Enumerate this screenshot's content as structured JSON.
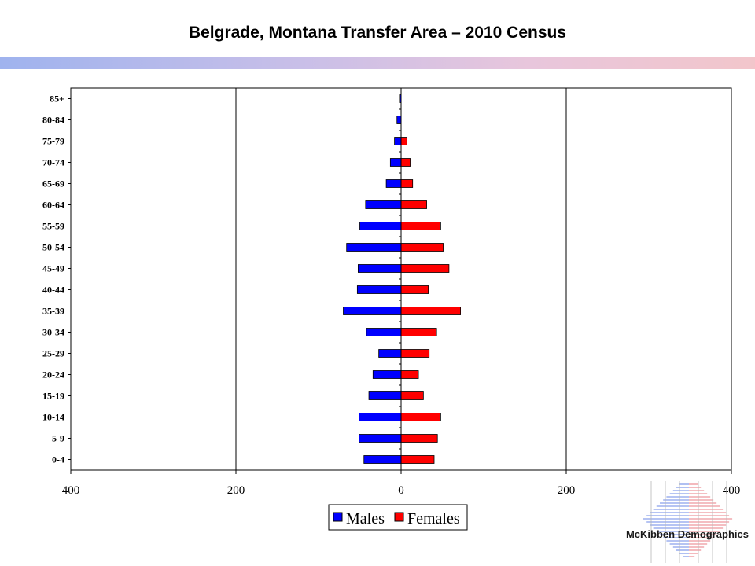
{
  "title": "Belgrade, Montana Transfer Area – 2010 Census",
  "brand": "McKibben Demographics",
  "colors": {
    "males": "#0000ff",
    "females": "#ff0000",
    "grid": "#000000"
  },
  "chart_data": {
    "type": "bar",
    "orientation": "horizontal-population-pyramid",
    "categories": [
      "0-4",
      "5-9",
      "10-14",
      "15-19",
      "20-24",
      "25-29",
      "30-34",
      "35-39",
      "40-44",
      "45-49",
      "50-54",
      "55-59",
      "60-64",
      "65-69",
      "70-74",
      "75-79",
      "80-84",
      "85+"
    ],
    "series": [
      {
        "name": "Males",
        "values": [
          45,
          51,
          51,
          39,
          34,
          27,
          42,
          70,
          53,
          52,
          66,
          50,
          43,
          18,
          13,
          8,
          5,
          2
        ]
      },
      {
        "name": "Females",
        "values": [
          40,
          44,
          48,
          27,
          21,
          34,
          43,
          72,
          33,
          58,
          51,
          48,
          31,
          14,
          11,
          7,
          0,
          0
        ]
      }
    ],
    "x_ticks": [
      "400",
      "200",
      "0",
      "200",
      "400"
    ],
    "xlim": [
      -400,
      400
    ],
    "xlabel": "",
    "ylabel": "",
    "grid": "vertical",
    "legend": "bottom-center"
  }
}
